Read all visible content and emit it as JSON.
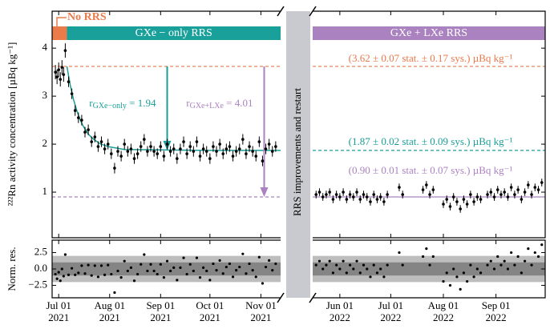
{
  "chart_data": {
    "type": "scatter",
    "ylabel": "²²²Rn activity concentration [µBq kg⁻¹]",
    "residual_ylabel": "Norm. res.",
    "ylim": [
      0.05,
      4.77
    ],
    "yticks": [
      1,
      2,
      3,
      4
    ],
    "res_ylim": [
      -4.4,
      4.4
    ],
    "res_yticks": [
      {
        "value": -2.5,
        "label": "−2.5"
      },
      {
        "value": 0,
        "label": "0.0"
      },
      {
        "value": 2.5,
        "label": "2.5"
      }
    ],
    "res_bands": [
      {
        "value": 2,
        "color": "#bdbdbd"
      },
      {
        "value": 1,
        "color": "#858585"
      }
    ],
    "gap_label": "RRS improvements and restart",
    "segments": [
      {
        "xlim": [
          "2021-06-27",
          "2021-11-13"
        ],
        "xticks": [
          {
            "value": "2021-07-01",
            "label": "Jul 01",
            "year": "2021"
          },
          {
            "value": "2021-08-01",
            "label": "Aug 01",
            "year": "2021"
          },
          {
            "value": "2021-09-01",
            "label": "Sep 01",
            "year": "2021"
          },
          {
            "value": "2021-10-01",
            "label": "Oct 01",
            "year": "2021"
          },
          {
            "value": "2021-11-01",
            "label": "Nov 01",
            "year": "2021"
          }
        ],
        "color": "#000000",
        "x": [
          "2021-06-29",
          "2021-06-30",
          "2021-07-01",
          "2021-07-02",
          "2021-07-03",
          "2021-07-04",
          "2021-07-05",
          "2021-07-07",
          "2021-07-09",
          "2021-07-11",
          "2021-07-13",
          "2021-07-15",
          "2021-07-17",
          "2021-07-19",
          "2021-07-21",
          "2021-07-23",
          "2021-07-25",
          "2021-07-27",
          "2021-07-29",
          "2021-07-31",
          "2021-08-02",
          "2021-08-04",
          "2021-08-06",
          "2021-08-08",
          "2021-08-10",
          "2021-08-12",
          "2021-08-14",
          "2021-08-16",
          "2021-08-18",
          "2021-08-20",
          "2021-08-22",
          "2021-08-24",
          "2021-08-26",
          "2021-08-28",
          "2021-08-30",
          "2021-09-01",
          "2021-09-03",
          "2021-09-05",
          "2021-09-07",
          "2021-09-09",
          "2021-09-11",
          "2021-09-13",
          "2021-09-15",
          "2021-09-17",
          "2021-09-19",
          "2021-09-21",
          "2021-09-23",
          "2021-09-25",
          "2021-09-27",
          "2021-09-29",
          "2021-10-01",
          "2021-10-03",
          "2021-10-05",
          "2021-10-07",
          "2021-10-09",
          "2021-10-11",
          "2021-10-13",
          "2021-10-15",
          "2021-10-17",
          "2021-10-19",
          "2021-10-21",
          "2021-10-23",
          "2021-10-25",
          "2021-10-27",
          "2021-10-29",
          "2021-10-31",
          "2021-11-02",
          "2021-11-04",
          "2021-11-06",
          "2021-11-08",
          "2021-11-10"
        ],
        "values": [
          3.5,
          3.4,
          3.55,
          3.35,
          3.6,
          3.45,
          3.95,
          3.3,
          3.05,
          2.7,
          2.55,
          2.5,
          2.25,
          2.3,
          2.05,
          2.15,
          1.95,
          2.05,
          1.9,
          2.0,
          1.8,
          1.5,
          1.85,
          1.75,
          2.0,
          1.85,
          1.9,
          1.7,
          1.8,
          1.95,
          2.1,
          1.85,
          1.95,
          1.85,
          1.8,
          1.95,
          1.75,
          2.0,
          1.85,
          1.9,
          1.7,
          1.9,
          2.05,
          1.8,
          1.95,
          1.85,
          2.05,
          1.75,
          1.9,
          1.85,
          1.7,
          1.95,
          1.85,
          2.0,
          1.8,
          1.9,
          1.95,
          1.75,
          1.85,
          1.9,
          2.1,
          1.8,
          1.95,
          1.85,
          1.75,
          2.05,
          1.65,
          1.9,
          2.0,
          1.85,
          1.95
        ],
        "errors": [
          0.15,
          0.15,
          0.15,
          0.15,
          0.15,
          0.15,
          0.15,
          0.11,
          0.11,
          0.11,
          0.11,
          0.11,
          0.11,
          0.11,
          0.11,
          0.11,
          0.11,
          0.11,
          0.11,
          0.11,
          0.11,
          0.11,
          0.11,
          0.11,
          0.11,
          0.11,
          0.11,
          0.11,
          0.11,
          0.11,
          0.11,
          0.11,
          0.11,
          0.11,
          0.11,
          0.11,
          0.11,
          0.11,
          0.11,
          0.11,
          0.11,
          0.11,
          0.11,
          0.11,
          0.11,
          0.11,
          0.11,
          0.11,
          0.11,
          0.11,
          0.11,
          0.11,
          0.11,
          0.11,
          0.11,
          0.11,
          0.11,
          0.11,
          0.11,
          0.11,
          0.11,
          0.11,
          0.11,
          0.11,
          0.11,
          0.11,
          0.11,
          0.11,
          0.11,
          0.11,
          0.11
        ],
        "residuals": [
          -0.8,
          -1.5,
          -0.5,
          -1.8,
          0.0,
          -1.1,
          2.2,
          -0.9,
          0.1,
          -0.9,
          -0.6,
          0.5,
          -0.7,
          0.6,
          -1.0,
          0.5,
          -1.2,
          0.5,
          -0.9,
          0.6,
          -0.8,
          -3.6,
          -0.3,
          -1.3,
          1.2,
          -0.3,
          0.2,
          -1.8,
          -0.8,
          0.7,
          2.2,
          -0.3,
          0.7,
          -0.3,
          -0.8,
          0.7,
          -1.3,
          1.2,
          -0.3,
          0.2,
          -1.7,
          0.2,
          1.7,
          -0.8,
          0.7,
          -0.3,
          1.7,
          -1.3,
          0.2,
          -0.3,
          -1.7,
          0.8,
          -0.2,
          1.3,
          -0.7,
          0.3,
          0.8,
          -1.2,
          -0.2,
          0.3,
          2.3,
          -0.7,
          0.8,
          -0.2,
          -1.2,
          1.8,
          -2.2,
          0.3,
          1.3,
          -0.2,
          0.8
        ]
      },
      {
        "xlim": [
          "2022-05-16",
          "2022-09-30"
        ],
        "xticks": [
          {
            "value": "2022-06-01",
            "label": "Jun 01",
            "year": "2022"
          },
          {
            "value": "2022-07-01",
            "label": "Jul 01",
            "year": "2022"
          },
          {
            "value": "2022-08-01",
            "label": "Aug 01",
            "year": "2022"
          },
          {
            "value": "2022-09-01",
            "label": "Sep 01",
            "year": "2022"
          }
        ],
        "color": "#000000",
        "x": [
          "2022-05-18",
          "2022-05-20",
          "2022-05-22",
          "2022-05-24",
          "2022-05-26",
          "2022-05-28",
          "2022-05-30",
          "2022-06-01",
          "2022-06-03",
          "2022-06-05",
          "2022-06-07",
          "2022-06-09",
          "2022-06-11",
          "2022-06-13",
          "2022-06-15",
          "2022-06-17",
          "2022-06-19",
          "2022-06-21",
          "2022-06-23",
          "2022-06-25",
          "2022-06-27",
          "2022-06-29",
          "2022-07-06",
          "2022-07-08",
          "2022-07-20",
          "2022-07-22",
          "2022-07-24",
          "2022-07-26",
          "2022-08-01",
          "2022-08-03",
          "2022-08-05",
          "2022-08-07",
          "2022-08-09",
          "2022-08-11",
          "2022-08-13",
          "2022-08-15",
          "2022-08-17",
          "2022-08-19",
          "2022-08-21",
          "2022-08-23",
          "2022-08-27",
          "2022-08-29",
          "2022-08-31",
          "2022-09-02",
          "2022-09-04",
          "2022-09-06",
          "2022-09-08",
          "2022-09-10",
          "2022-09-12",
          "2022-09-14",
          "2022-09-16",
          "2022-09-18",
          "2022-09-20",
          "2022-09-22",
          "2022-09-24",
          "2022-09-26",
          "2022-09-28"
        ],
        "values": [
          0.95,
          1.0,
          0.9,
          0.95,
          1.0,
          0.85,
          0.95,
          0.9,
          1.0,
          0.85,
          0.95,
          0.9,
          1.0,
          0.85,
          0.95,
          0.9,
          0.8,
          0.95,
          0.85,
          0.9,
          0.8,
          0.95,
          1.1,
          0.95,
          1.05,
          1.15,
          0.95,
          1.05,
          0.75,
          0.85,
          0.7,
          0.9,
          0.8,
          0.65,
          0.85,
          0.75,
          0.95,
          0.8,
          0.9,
          0.85,
          0.95,
          1.0,
          0.9,
          1.05,
          0.95,
          1.0,
          0.9,
          1.1,
          0.95,
          1.05,
          0.85,
          1.0,
          1.15,
          0.95,
          1.1,
          1.05,
          1.2
        ],
        "errors": [
          0.08,
          0.08,
          0.08,
          0.08,
          0.08,
          0.08,
          0.08,
          0.08,
          0.08,
          0.08,
          0.08,
          0.08,
          0.08,
          0.08,
          0.08,
          0.08,
          0.08,
          0.08,
          0.08,
          0.08,
          0.08,
          0.08,
          0.08,
          0.08,
          0.08,
          0.08,
          0.08,
          0.08,
          0.08,
          0.08,
          0.08,
          0.08,
          0.08,
          0.08,
          0.08,
          0.08,
          0.08,
          0.08,
          0.08,
          0.08,
          0.08,
          0.08,
          0.08,
          0.08,
          0.08,
          0.08,
          0.08,
          0.08,
          0.08,
          0.08,
          0.08,
          0.08,
          0.08,
          0.08,
          0.08,
          0.08,
          0.08
        ],
        "residuals": [
          0.6,
          1.2,
          0.0,
          0.6,
          1.2,
          -0.6,
          0.6,
          0.0,
          1.2,
          -0.6,
          0.6,
          0.0,
          1.2,
          -0.6,
          0.6,
          0.0,
          -1.2,
          0.6,
          -0.6,
          0.0,
          -1.2,
          0.6,
          2.5,
          0.6,
          1.9,
          3.1,
          0.6,
          1.9,
          -1.9,
          -0.6,
          -2.5,
          0.0,
          -1.2,
          -3.1,
          -0.6,
          -1.9,
          0.6,
          -1.2,
          0.0,
          -0.6,
          0.6,
          1.2,
          0.0,
          1.9,
          0.6,
          1.2,
          0.0,
          2.5,
          0.6,
          1.9,
          -0.6,
          1.2,
          3.1,
          0.6,
          2.5,
          1.9,
          3.7
        ]
      }
    ],
    "fit": {
      "color": "#1a9e97",
      "x": [
        "2021-07-06",
        "2021-07-08",
        "2021-07-10",
        "2021-07-12",
        "2021-07-14",
        "2021-07-16",
        "2021-07-19",
        "2021-07-22",
        "2021-07-26",
        "2021-07-31",
        "2021-08-10",
        "2021-09-01",
        "2021-10-01",
        "2021-11-13"
      ],
      "values": [
        3.62,
        3.23,
        2.93,
        2.7,
        2.51,
        2.37,
        2.21,
        2.11,
        2.01,
        1.95,
        1.89,
        1.88,
        1.87,
        1.87
      ]
    },
    "lines": [
      {
        "value": 3.62,
        "color": "#e8794a",
        "label": "(3.62 ± 0.07 stat. ± 0.17 sys.) µBq kg⁻¹",
        "draw": [
          {
            "segment": 0,
            "style": "dashed"
          },
          {
            "segment": 1,
            "style": "dashed"
          }
        ]
      },
      {
        "value": 1.87,
        "color": "#1a9e97",
        "label": "(1.87 ± 0.02 stat. ± 0.09 sys.) µBq kg⁻¹",
        "draw": [
          {
            "segment": 1,
            "style": "dashed"
          }
        ]
      },
      {
        "value": 0.9,
        "color": "#ab82c0",
        "label": "(0.90 ± 0.01 stat. ± 0.07 sys.) µBq kg⁻¹",
        "draw": [
          {
            "segment": 0,
            "style": "dashed"
          },
          {
            "segment": 1,
            "style": "solid"
          }
        ]
      }
    ],
    "phases": [
      {
        "name": "No RRS",
        "color": "#ec7b4a",
        "segment": 0,
        "from": "2021-06-27",
        "to": "2021-07-06"
      },
      {
        "name": "GXe − only RRS",
        "color": "#1aa09a",
        "segment": 0,
        "from": "2021-07-06",
        "to": "2021-11-13"
      },
      {
        "name": "GXe + LXe RRS",
        "color": "#ab82c0",
        "segment": 1,
        "from": "2022-05-16",
        "to": "2022-09-30"
      }
    ],
    "arrows": [
      {
        "x": "2021-09-05",
        "from": 3.62,
        "to": 1.87,
        "color": "#1a9e97",
        "symbol": "r",
        "subscript": "GXe−only",
        "text": " = 1.94"
      },
      {
        "x": "2021-11-03",
        "from": 3.62,
        "to": 0.9,
        "color": "#ab82c0",
        "symbol": "r",
        "subscript": "GXe+LXe",
        "text": " = 4.01"
      }
    ]
  }
}
